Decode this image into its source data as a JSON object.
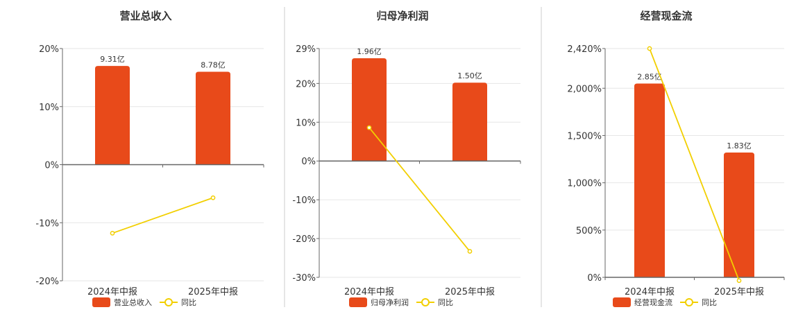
{
  "colors": {
    "bar": "#e84a1a",
    "line": "#f2cf00",
    "grid": "#e6e6e6",
    "axis": "#666666",
    "divider": "#cccccc"
  },
  "chart_data": [
    {
      "type": "bar",
      "title": "营业总收入",
      "categories": [
        "2024年中报",
        "2025年中报"
      ],
      "bar_series": {
        "name": "营业总收入",
        "values": [
          17,
          16
        ],
        "labels": [
          "9.31亿",
          "8.78亿"
        ]
      },
      "line_series": {
        "name": "同比",
        "values": [
          -11.8,
          -5.7
        ]
      },
      "ylim": [
        -20,
        20
      ],
      "yticks": [
        -20,
        -10,
        0,
        10,
        20
      ],
      "ytick_labels": [
        "-20%",
        "-10%",
        "0%",
        "10%",
        "20%"
      ],
      "grid": true,
      "legend_position": "bottom"
    },
    {
      "type": "bar",
      "title": "归母净利润",
      "categories": [
        "2024年中报",
        "2025年中报"
      ],
      "bar_series": {
        "name": "归母净利润",
        "values": [
          26.5,
          20.2
        ],
        "labels": [
          "1.96亿",
          "1.50亿"
        ]
      },
      "line_series": {
        "name": "同比",
        "values": [
          8.6,
          -23.3
        ]
      },
      "ylim": [
        -30,
        29
      ],
      "yticks": [
        -30,
        -20,
        -10,
        0,
        10,
        20,
        29
      ],
      "ytick_labels": [
        "-30%",
        "-20%",
        "-10%",
        "0%",
        "10%",
        "20%",
        "29%"
      ],
      "grid": true,
      "legend_position": "bottom"
    },
    {
      "type": "bar",
      "title": "经营现金流",
      "categories": [
        "2024年中报",
        "2025年中报"
      ],
      "bar_series": {
        "name": "经营现金流",
        "values": [
          2050,
          1320
        ],
        "labels": [
          "2.85亿",
          "1.83亿"
        ]
      },
      "line_series": {
        "name": "同比",
        "values": [
          2420,
          -35
        ]
      },
      "ylim": [
        0,
        2420
      ],
      "yticks": [
        0,
        500,
        1000,
        1500,
        2000,
        2420
      ],
      "ytick_labels": [
        "0%",
        "500%",
        "1,000%",
        "1,500%",
        "2,000%",
        "2,420%"
      ],
      "grid": true,
      "legend_position": "bottom"
    }
  ]
}
